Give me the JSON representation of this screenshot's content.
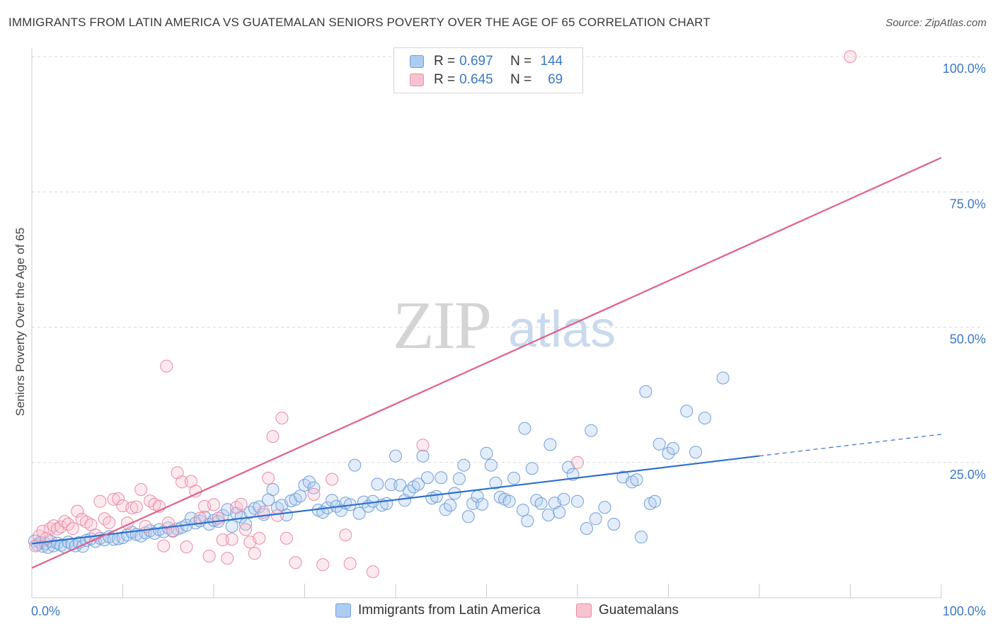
{
  "title": "IMMIGRANTS FROM LATIN AMERICA VS GUATEMALAN SENIORS POVERTY OVER THE AGE OF 65 CORRELATION CHART",
  "source": "Source: ZipAtlas.com",
  "watermark": {
    "zip": "ZIP",
    "atlas": "atlas"
  },
  "legend": {
    "rows": [
      {
        "r_label": "R =",
        "r_value": "0.697",
        "n_label": "N =",
        "n_value": "144",
        "color": "#6f9fd8"
      },
      {
        "r_label": "R =",
        "r_value": "0.645",
        "n_label": "N =",
        "n_value": "69",
        "color": "#e98aa5"
      }
    ]
  },
  "bottom_legend": [
    {
      "label": "Immigrants from Latin America",
      "color": "#6f9fd8"
    },
    {
      "label": "Guatemalans",
      "color": "#e98aa5"
    }
  ],
  "colors": {
    "blue_line": "#2f6fcc",
    "pink_line": "#e0608a",
    "tick_text": "#3b78c6",
    "grid": "#d9d9d9"
  },
  "chart_data": {
    "type": "scatter",
    "title": "IMMIGRANTS FROM LATIN AMERICA VS GUATEMALAN SENIORS POVERTY OVER THE AGE OF 65 CORRELATION CHART",
    "xlabel": "",
    "ylabel": "Seniors Poverty Over the Age of 65",
    "xlim": [
      0,
      100
    ],
    "ylim": [
      0,
      100
    ],
    "x_tick_labels": [
      "0.0%",
      "100.0%"
    ],
    "y_ticks": [
      25,
      50,
      75,
      100
    ],
    "y_tick_labels": [
      "25.0%",
      "50.0%",
      "75.0%",
      "100.0%"
    ],
    "grid": true,
    "legend_position": "top-center",
    "series": [
      {
        "name": "Immigrants from Latin America",
        "color": "#6f9fd8",
        "r": 0.697,
        "n": 144,
        "trend": {
          "x": [
            0,
            80
          ],
          "y": [
            10.0,
            26.2
          ],
          "dashed_extension_to": [
            100,
            30.2
          ]
        },
        "points": [
          [
            0.3,
            10.5
          ],
          [
            0.6,
            9.8
          ],
          [
            0.9,
            10.2
          ],
          [
            1.2,
            9.5
          ],
          [
            1.5,
            10.0
          ],
          [
            1.8,
            9.3
          ],
          [
            2.1,
            10.4
          ],
          [
            2.4,
            9.6
          ],
          [
            2.8,
            10.1
          ],
          [
            3.2,
            9.7
          ],
          [
            3.6,
            9.4
          ],
          [
            4.0,
            10.3
          ],
          [
            4.4,
            9.9
          ],
          [
            4.8,
            9.6
          ],
          [
            5.2,
            10.2
          ],
          [
            5.6,
            9.5
          ],
          [
            6.0,
            10.6
          ],
          [
            6.5,
            10.9
          ],
          [
            7.0,
            10.4
          ],
          [
            7.5,
            11.0
          ],
          [
            8.0,
            10.7
          ],
          [
            8.5,
            11.3
          ],
          [
            9.0,
            10.8
          ],
          [
            9.5,
            10.9
          ],
          [
            10.0,
            11.1
          ],
          [
            10.5,
            11.6
          ],
          [
            11.0,
            12.1
          ],
          [
            11.5,
            11.7
          ],
          [
            12.0,
            11.4
          ],
          [
            12.5,
            12.0
          ],
          [
            13.0,
            12.4
          ],
          [
            13.5,
            11.9
          ],
          [
            14.0,
            12.6
          ],
          [
            14.5,
            12.2
          ],
          [
            15.0,
            12.9
          ],
          [
            15.5,
            12.3
          ],
          [
            16.0,
            12.7
          ],
          [
            16.5,
            13.0
          ],
          [
            17.0,
            13.4
          ],
          [
            17.5,
            14.7
          ],
          [
            18.0,
            13.8
          ],
          [
            18.5,
            14.2
          ],
          [
            19.0,
            14.9
          ],
          [
            19.5,
            13.6
          ],
          [
            20.0,
            14.3
          ],
          [
            20.5,
            14.1
          ],
          [
            21.0,
            15.2
          ],
          [
            21.5,
            16.3
          ],
          [
            22.0,
            13.2
          ],
          [
            22.5,
            15.6
          ],
          [
            23.0,
            14.9
          ],
          [
            23.5,
            13.6
          ],
          [
            24.0,
            15.8
          ],
          [
            24.5,
            16.5
          ],
          [
            25.0,
            16.8
          ],
          [
            25.5,
            15.4
          ],
          [
            26.0,
            18.1
          ],
          [
            26.5,
            20.0
          ],
          [
            27.0,
            16.6
          ],
          [
            27.5,
            17.1
          ],
          [
            28.0,
            15.3
          ],
          [
            28.5,
            17.9
          ],
          [
            29.0,
            18.2
          ],
          [
            29.5,
            18.8
          ],
          [
            30.0,
            20.8
          ],
          [
            30.5,
            21.4
          ],
          [
            31.0,
            20.3
          ],
          [
            31.5,
            16.2
          ],
          [
            32.0,
            15.8
          ],
          [
            32.5,
            16.6
          ],
          [
            33.0,
            18.0
          ],
          [
            33.5,
            16.9
          ],
          [
            34.0,
            16.1
          ],
          [
            34.5,
            17.5
          ],
          [
            35.0,
            17.2
          ],
          [
            35.5,
            24.5
          ],
          [
            36.0,
            15.6
          ],
          [
            36.5,
            17.7
          ],
          [
            37.0,
            16.9
          ],
          [
            37.5,
            17.8
          ],
          [
            38.0,
            21.0
          ],
          [
            38.5,
            17.1
          ],
          [
            39.0,
            17.4
          ],
          [
            39.5,
            20.9
          ],
          [
            40.0,
            26.2
          ],
          [
            40.5,
            20.8
          ],
          [
            41.0,
            18.0
          ],
          [
            41.5,
            19.7
          ],
          [
            42.0,
            20.5
          ],
          [
            42.5,
            21.0
          ],
          [
            43.0,
            26.2
          ],
          [
            43.5,
            22.2
          ],
          [
            44.0,
            18.4
          ],
          [
            44.5,
            18.7
          ],
          [
            45.0,
            22.2
          ],
          [
            45.5,
            16.3
          ],
          [
            46.0,
            17.1
          ],
          [
            46.5,
            19.3
          ],
          [
            47.0,
            22.0
          ],
          [
            47.5,
            24.5
          ],
          [
            48.0,
            15.0
          ],
          [
            48.5,
            17.4
          ],
          [
            49.0,
            18.7
          ],
          [
            49.5,
            17.3
          ],
          [
            50.0,
            26.7
          ],
          [
            50.5,
            24.5
          ],
          [
            51.0,
            21.2
          ],
          [
            51.5,
            18.6
          ],
          [
            52.0,
            18.2
          ],
          [
            52.5,
            17.8
          ],
          [
            53.0,
            22.1
          ],
          [
            54.0,
            16.2
          ],
          [
            54.5,
            14.2
          ],
          [
            55.0,
            23.9
          ],
          [
            55.5,
            18.0
          ],
          [
            56.0,
            17.4
          ],
          [
            57.0,
            28.3
          ],
          [
            57.5,
            17.5
          ],
          [
            58.0,
            15.8
          ],
          [
            58.5,
            18.2
          ],
          [
            59.0,
            24.1
          ],
          [
            59.5,
            22.8
          ],
          [
            60.0,
            17.8
          ],
          [
            61.0,
            12.8
          ],
          [
            62.0,
            14.6
          ],
          [
            63.0,
            16.7
          ],
          [
            64.0,
            13.6
          ],
          [
            65.0,
            22.3
          ],
          [
            66.0,
            21.4
          ],
          [
            66.5,
            21.8
          ],
          [
            67.0,
            11.2
          ],
          [
            68.0,
            17.4
          ],
          [
            68.5,
            17.8
          ],
          [
            69.0,
            28.4
          ],
          [
            70.0,
            26.7
          ],
          [
            70.5,
            27.6
          ],
          [
            72.0,
            34.5
          ],
          [
            73.0,
            26.9
          ],
          [
            74.0,
            33.2
          ],
          [
            76.0,
            40.6
          ],
          [
            61.5,
            30.9
          ],
          [
            56.8,
            15.3
          ],
          [
            67.5,
            38.1
          ],
          [
            54.2,
            31.3
          ]
        ]
      },
      {
        "name": "Guatemalans",
        "color": "#e98aa5",
        "r": 0.645,
        "n": 69,
        "trend": {
          "x": [
            0,
            100
          ],
          "y": [
            5.5,
            81.3
          ]
        },
        "points": [
          [
            0.4,
            9.6
          ],
          [
            0.8,
            11.4
          ],
          [
            1.2,
            12.3
          ],
          [
            1.6,
            11.0
          ],
          [
            2.0,
            12.8
          ],
          [
            2.4,
            13.3
          ],
          [
            2.8,
            12.7
          ],
          [
            3.2,
            13.1
          ],
          [
            3.6,
            14.1
          ],
          [
            4.0,
            13.6
          ],
          [
            4.5,
            12.8
          ],
          [
            5.0,
            16.0
          ],
          [
            5.5,
            14.5
          ],
          [
            6.0,
            14.0
          ],
          [
            6.5,
            13.5
          ],
          [
            7.0,
            11.6
          ],
          [
            7.5,
            17.8
          ],
          [
            8.0,
            14.6
          ],
          [
            8.5,
            13.9
          ],
          [
            9.0,
            18.2
          ],
          [
            9.5,
            18.3
          ],
          [
            10.0,
            17.0
          ],
          [
            10.5,
            13.8
          ],
          [
            11.0,
            16.6
          ],
          [
            11.5,
            16.8
          ],
          [
            12.0,
            20.0
          ],
          [
            12.5,
            13.2
          ],
          [
            13.0,
            17.9
          ],
          [
            13.5,
            17.3
          ],
          [
            14.0,
            16.9
          ],
          [
            14.5,
            9.6
          ],
          [
            15.0,
            13.8
          ],
          [
            15.5,
            12.4
          ],
          [
            16.0,
            23.1
          ],
          [
            16.5,
            21.4
          ],
          [
            17.0,
            9.4
          ],
          [
            17.5,
            21.5
          ],
          [
            18.0,
            19.7
          ],
          [
            18.5,
            14.7
          ],
          [
            19.0,
            16.9
          ],
          [
            19.5,
            7.7
          ],
          [
            20.0,
            17.2
          ],
          [
            20.5,
            14.7
          ],
          [
            21.0,
            10.7
          ],
          [
            21.5,
            7.3
          ],
          [
            22.0,
            10.8
          ],
          [
            22.5,
            16.7
          ],
          [
            23.0,
            17.3
          ],
          [
            23.5,
            12.6
          ],
          [
            24.0,
            10.3
          ],
          [
            24.5,
            8.2
          ],
          [
            25.0,
            11.0
          ],
          [
            25.5,
            15.8
          ],
          [
            26.0,
            22.1
          ],
          [
            26.5,
            29.8
          ],
          [
            27.0,
            15.2
          ],
          [
            27.5,
            33.2
          ],
          [
            28.0,
            11.0
          ],
          [
            29.0,
            6.5
          ],
          [
            31.0,
            19.1
          ],
          [
            32.0,
            6.1
          ],
          [
            33.0,
            21.9
          ],
          [
            34.5,
            11.6
          ],
          [
            35.0,
            6.3
          ],
          [
            37.5,
            4.8
          ],
          [
            43.0,
            28.2
          ],
          [
            60.0,
            25.0
          ],
          [
            90.0,
            100.0
          ],
          [
            14.8,
            42.8
          ]
        ]
      }
    ]
  }
}
